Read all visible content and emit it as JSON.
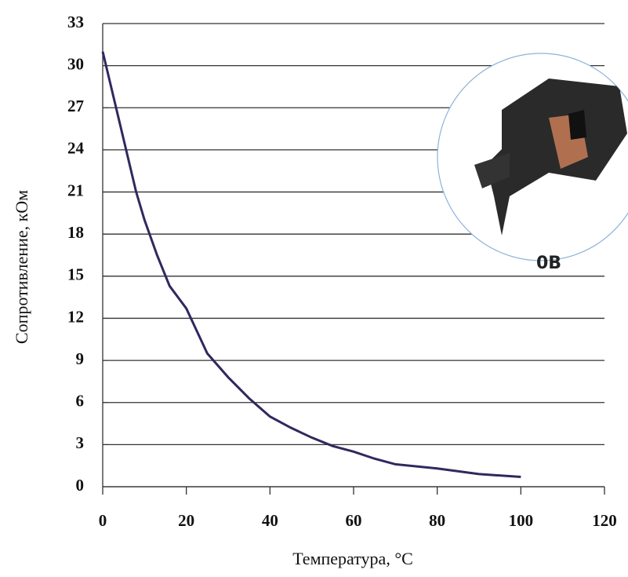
{
  "chart_data": {
    "type": "line",
    "x_label": "Температура, °C",
    "y_label": "Сопротивление, кОм",
    "inset_label": "0B",
    "x": [
      0,
      2,
      4,
      6,
      8,
      10,
      13,
      16,
      20,
      25,
      30,
      35,
      40,
      45,
      50,
      55,
      60,
      65,
      70,
      80,
      90,
      100
    ],
    "series": [
      {
        "color": "#2e2a5e",
        "values": [
          31,
          28.5,
          26,
          23.5,
          21,
          19,
          16.5,
          14.3,
          12.7,
          9.5,
          7.8,
          6.3,
          5.0,
          4.2,
          3.5,
          2.9,
          2.5,
          2.0,
          1.6,
          1.3,
          0.9,
          0.7
        ]
      }
    ],
    "xlim": [
      0,
      120
    ],
    "xticks": [
      0,
      20,
      40,
      60,
      80,
      100,
      120
    ],
    "ylim": [
      0,
      33
    ],
    "yticks": [
      0,
      3,
      6,
      9,
      12,
      15,
      18,
      21,
      24,
      27,
      30,
      33
    ],
    "grid": true
  }
}
